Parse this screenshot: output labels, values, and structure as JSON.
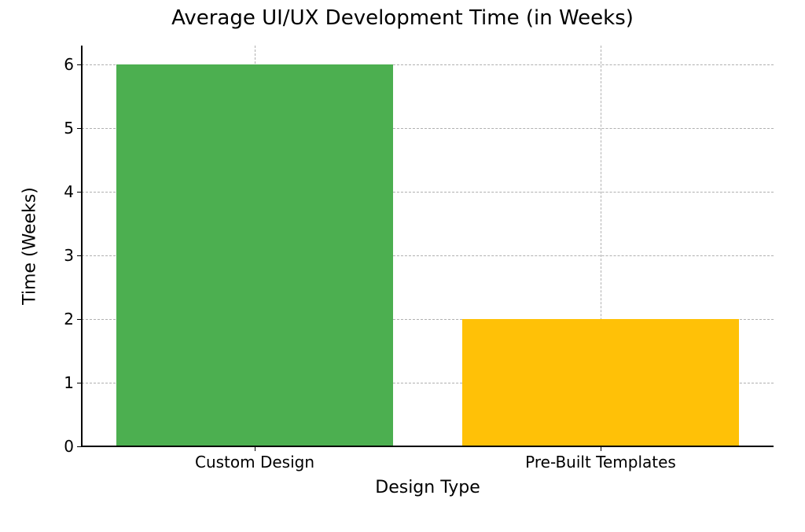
{
  "chart": {
    "type": "bar",
    "title": "Average UI/UX Development Time (in Weeks)",
    "title_fontsize": 26,
    "title_color": "#000000",
    "xlabel": "Design Type",
    "ylabel": "Time (Weeks)",
    "axis_label_fontsize": 22,
    "tick_fontsize": 20,
    "categories": [
      "Custom Design",
      "Pre-Built Templates"
    ],
    "values": [
      6,
      2
    ],
    "bar_colors": [
      "#4caf50",
      "#ffc107"
    ],
    "bar_width": 0.8,
    "xlim": [
      -0.5,
      1.5
    ],
    "ylim": [
      0,
      6.3
    ],
    "yticks": [
      0,
      1,
      2,
      3,
      4,
      5,
      6
    ],
    "xticks_pos": [
      0,
      1
    ],
    "background_color": "#ffffff",
    "grid_color": "#b0b0b0",
    "grid_dash": "6,4",
    "grid_linewidth": 1,
    "spine_color": "#000000",
    "spine_linewidth": 2,
    "show_top_spine": false,
    "show_right_spine": false,
    "font_family": "DejaVu Sans, Helvetica, Arial, sans-serif"
  }
}
